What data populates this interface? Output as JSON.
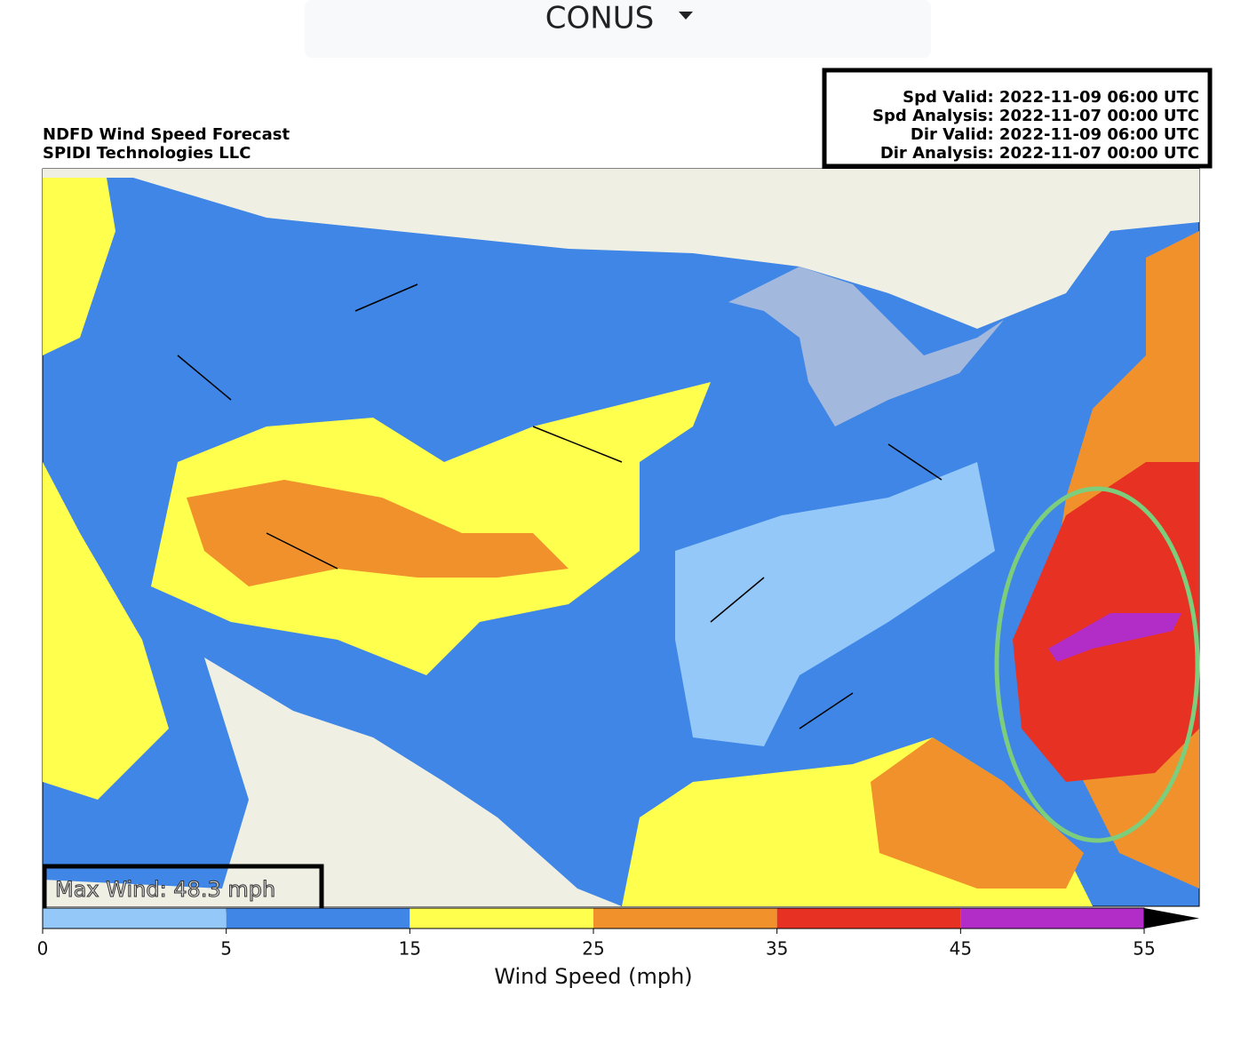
{
  "dropdown": {
    "label": "CONUS"
  },
  "info": {
    "lines": [
      "Spd Valid: 2022-11-09 06:00 UTC",
      "Spd Analysis: 2022-11-07 00:00 UTC",
      "Dir Valid: 2022-11-09 06:00 UTC",
      "Dir Analysis: 2022-11-07 00:00 UTC"
    ]
  },
  "title": {
    "lines": [
      "NDFD Wind Speed Forecast",
      "SPIDI Technologies LLC"
    ]
  },
  "max_wind": "Max Wind: 48.3 mph",
  "colorbar": {
    "label": "Wind Speed (mph)",
    "ticks": [
      0,
      5,
      15,
      25,
      35,
      45,
      55
    ],
    "colors": [
      "#94c8f8",
      "#3f86e6",
      "#ffff4d",
      "#f0912c",
      "#e73223",
      "#b22cc8"
    ],
    "extend_color": "#000000"
  }
}
